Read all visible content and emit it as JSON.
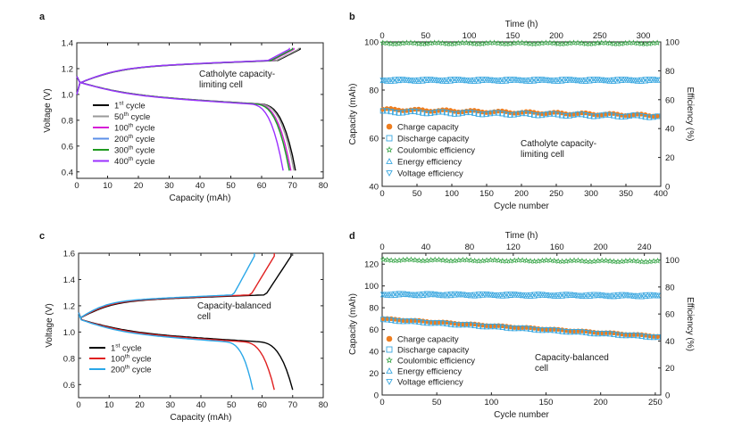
{
  "chart_data": [
    {
      "panel": "a",
      "type": "line",
      "xlabel": "Capacity (mAh)",
      "ylabel": "Voltage (V)",
      "xlim": [
        0,
        80
      ],
      "ylim": [
        0.35,
        1.4
      ],
      "xticks": [
        0,
        10,
        20,
        30,
        40,
        50,
        60,
        70,
        80
      ],
      "yticks": [
        0.4,
        0.6,
        0.8,
        1.0,
        1.2,
        1.4
      ],
      "annotation": [
        "Catholyte capacity-",
        "limiting cell"
      ],
      "series": [
        {
          "name": "1st cycle",
          "base": "1",
          "sup": "st",
          "rest": " cycle",
          "color": "#000000",
          "charge_cap": 72.5,
          "discharge_cap": 71.0
        },
        {
          "name": "50th cycle",
          "base": "50",
          "sup": "th",
          "rest": " cycle",
          "color": "#9a9a9a",
          "charge_cap": 72.0,
          "discharge_cap": 70.5
        },
        {
          "name": "100th cycle",
          "base": "100",
          "sup": "th",
          "rest": " cycle",
          "color": "#d61fd6",
          "charge_cap": 70.5,
          "discharge_cap": 69.5
        },
        {
          "name": "200th cycle",
          "base": "200",
          "sup": "th",
          "rest": " cycle",
          "color": "#5b8fe8",
          "charge_cap": 70.0,
          "discharge_cap": 69.0
        },
        {
          "name": "300th cycle",
          "base": "300",
          "sup": "th",
          "rest": " cycle",
          "color": "#1f9a1f",
          "charge_cap": 70.0,
          "discharge_cap": 69.0
        },
        {
          "name": "400th cycle",
          "base": "400",
          "sup": "th",
          "rest": " cycle",
          "color": "#9b30ff",
          "charge_cap": 69.0,
          "discharge_cap": 67.0
        }
      ]
    },
    {
      "panel": "b",
      "type": "scatter",
      "xlabel": "Cycle number",
      "ylabel": "Capacity (mAh)",
      "y2label": "Efficiency (%)",
      "toplabel": "Time (h)",
      "xlim": [
        0,
        400
      ],
      "ylim": [
        40,
        100
      ],
      "y2lim": [
        0,
        100
      ],
      "toplim": [
        0,
        320
      ],
      "xticks": [
        0,
        50,
        100,
        150,
        200,
        250,
        300,
        350,
        400
      ],
      "yticks": [
        40,
        60,
        80,
        100
      ],
      "y2ticks": [
        0,
        20,
        40,
        60,
        80,
        100
      ],
      "topticks": [
        0,
        50,
        100,
        150,
        200,
        250,
        300
      ],
      "annotation": [
        "Catholyte capacity-",
        "limiting cell"
      ],
      "series": [
        {
          "name": "Charge capacity",
          "marker": "circle-filled",
          "color": "#ee7d1e",
          "axis": "left",
          "start": 72,
          "end": 69.5
        },
        {
          "name": "Discharge capacity",
          "marker": "square-open",
          "color": "#39a7e0",
          "axis": "left",
          "start": 71,
          "end": 69
        },
        {
          "name": "Coulombic efficiency",
          "marker": "star-open",
          "color": "#3aa64a",
          "axis": "right",
          "start": 99,
          "end": 99
        },
        {
          "name": "Energy efficiency",
          "marker": "triangle-up-open",
          "color": "#39a7e0",
          "axis": "right",
          "start": 73,
          "end": 73
        },
        {
          "name": "Voltage efficiency",
          "marker": "triangle-down-open",
          "color": "#39a7e0",
          "axis": "right",
          "start": 74,
          "end": 74
        }
      ]
    },
    {
      "panel": "c",
      "type": "line",
      "xlabel": "Capacity (mAh)",
      "ylabel": "Voltage (V)",
      "xlim": [
        0,
        80
      ],
      "ylim": [
        0.5,
        1.6
      ],
      "xticks": [
        0,
        10,
        20,
        30,
        40,
        50,
        60,
        70,
        80
      ],
      "yticks": [
        0.6,
        0.8,
        1.0,
        1.2,
        1.4,
        1.6
      ],
      "annotation": [
        "Capacity-balanced",
        "cell"
      ],
      "series": [
        {
          "name": "1st cycle",
          "base": "1",
          "sup": "st",
          "rest": " cycle",
          "color": "#000000",
          "charge_cap": 69.5,
          "discharge_cap": 70.0
        },
        {
          "name": "100th cycle",
          "base": "100",
          "sup": "th",
          "rest": " cycle",
          "color": "#e02020",
          "charge_cap": 64.0,
          "discharge_cap": 64.0
        },
        {
          "name": "200th cycle",
          "base": "200",
          "sup": "th",
          "rest": " cycle",
          "color": "#2aa7e8",
          "charge_cap": 57.5,
          "discharge_cap": 57.0
        }
      ]
    },
    {
      "panel": "d",
      "type": "scatter",
      "xlabel": "Cycle number",
      "ylabel": "Capacity (mAh)",
      "y2label": "Efficiency (%)",
      "toplabel": "Time (h)",
      "xlim": [
        0,
        255
      ],
      "ylim": [
        0,
        130
      ],
      "y2lim": [
        0,
        105
      ],
      "toplim": [
        0,
        255
      ],
      "xticks": [
        0,
        50,
        100,
        150,
        200,
        250
      ],
      "yticks": [
        0,
        20,
        40,
        60,
        80,
        100,
        120
      ],
      "y2ticks": [
        0,
        20,
        40,
        60,
        80,
        100
      ],
      "topticks": [
        0,
        40,
        80,
        120,
        160,
        200,
        240
      ],
      "annotation": [
        "Capacity-balanced",
        "cell"
      ],
      "series": [
        {
          "name": "Charge capacity",
          "marker": "circle-filled",
          "color": "#ee7d1e",
          "axis": "left",
          "start": 70,
          "end": 54
        },
        {
          "name": "Discharge capacity",
          "marker": "square-open",
          "color": "#39a7e0",
          "axis": "left",
          "start": 69,
          "end": 53
        },
        {
          "name": "Coulombic efficiency",
          "marker": "star-open",
          "color": "#3aa64a",
          "axis": "right",
          "start": 100,
          "end": 99
        },
        {
          "name": "Energy efficiency",
          "marker": "triangle-up-open",
          "color": "#39a7e0",
          "axis": "right",
          "start": 74,
          "end": 73
        },
        {
          "name": "Voltage efficiency",
          "marker": "triangle-down-open",
          "color": "#39a7e0",
          "axis": "right",
          "start": 75,
          "end": 74
        }
      ]
    }
  ]
}
